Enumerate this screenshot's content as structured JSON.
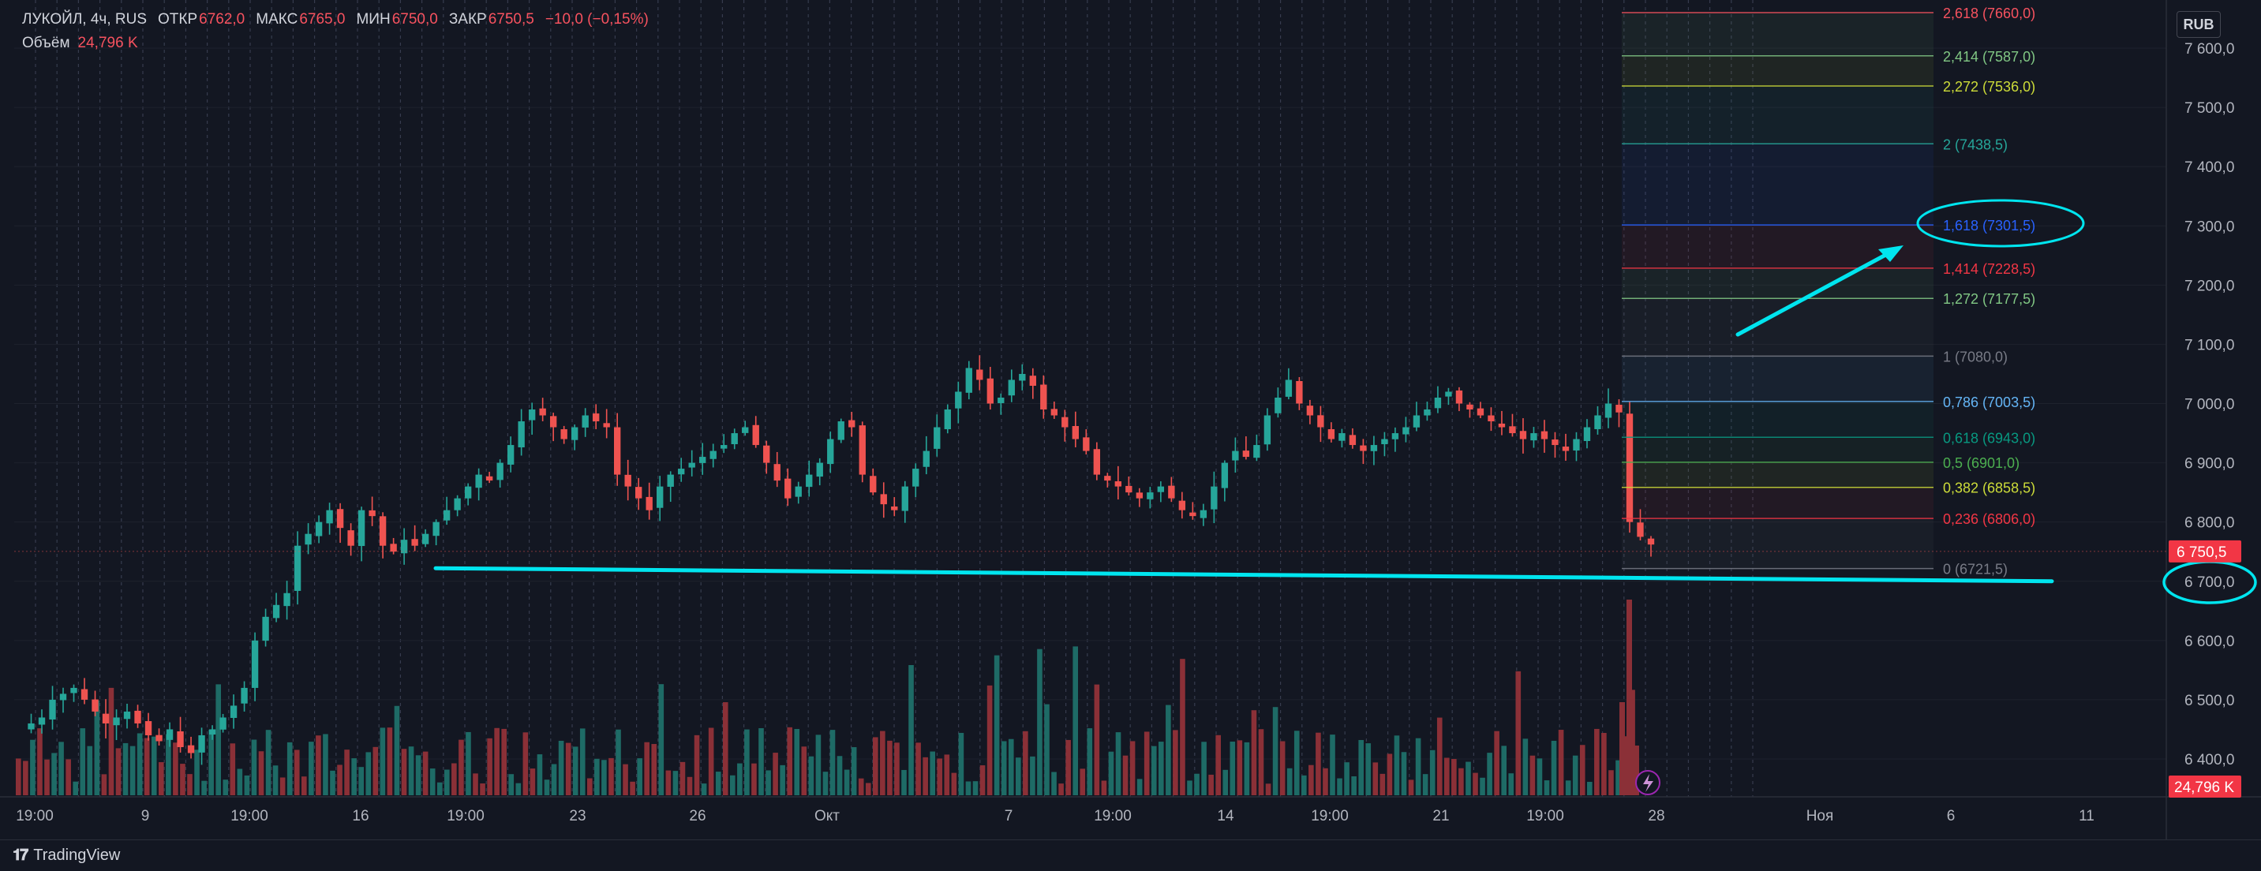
{
  "legend": {
    "title": "ЛУКОЙЛ, 4ч, RUS",
    "open_label": "ОТКР",
    "open": "6762,0",
    "high_label": "МАКС",
    "high": "6765,0",
    "low_label": "МИН",
    "low": "6750,0",
    "close_label": "ЗАКР",
    "close": "6750,5",
    "change": "−10,0 (−0,15%)",
    "volume_label": "Объём",
    "volume": "24,796 K"
  },
  "currency_button": "RUB",
  "footer": {
    "logo": "𝟏𝟕",
    "brand": "TradingView"
  },
  "colors": {
    "background": "#131722",
    "bull": "#26a69a",
    "bear": "#ef5350",
    "volume_bull": "#1e6b66",
    "volume_bear": "#8b3037",
    "annotation": "#00e5ef",
    "grid_dash": "#3a4053"
  },
  "chart_data": {
    "type": "candlestick",
    "symbol": "ЛУКОЙЛ",
    "interval": "4ч",
    "exchange": "RUS",
    "currency": "RUB",
    "ylim": [
      6400,
      7600
    ],
    "y_ticks": [
      "6 400,0",
      "6 500,0",
      "6 600,0",
      "6 700,0",
      "6 800,0",
      "6 900,0",
      "7 000,0",
      "7 100,0",
      "7 200,0",
      "7 300,0",
      "7 400,0",
      "7 500,0",
      "7 600,0"
    ],
    "x_ticks": [
      "19:00",
      "9",
      "19:00",
      "16",
      "19:00",
      "23",
      "26",
      "Окт",
      "7",
      "19:00",
      "14",
      "19:00",
      "21",
      "19:00",
      "28",
      "Ноя",
      "6",
      "11"
    ],
    "last_price": "6 750,5",
    "last_volume": "24,796 K",
    "close_path": [
      6450,
      6460,
      6470,
      6500,
      6510,
      6520,
      6500,
      6480,
      6460,
      6470,
      6480,
      6460,
      6440,
      6430,
      6450,
      6420,
      6410,
      6440,
      6450,
      6470,
      6490,
      6520,
      6600,
      6640,
      6660,
      6680,
      6760,
      6780,
      6800,
      6820,
      6790,
      6760,
      6820,
      6810,
      6760,
      6750,
      6770,
      6760,
      6780,
      6800,
      6820,
      6840,
      6860,
      6880,
      6870,
      6900,
      6930,
      6970,
      6990,
      6980,
      6960,
      6940,
      6960,
      6980,
      6970,
      6960,
      6880,
      6860,
      6840,
      6820,
      6860,
      6880,
      6890,
      6900,
      6910,
      6920,
      6930,
      6950,
      6960,
      6930,
      6900,
      6870,
      6840,
      6860,
      6880,
      6900,
      6940,
      6970,
      6960,
      6880,
      6850,
      6830,
      6820,
      6860,
      6890,
      6920,
      6960,
      6990,
      7020,
      7060,
      7040,
      7000,
      7010,
      7040,
      7050,
      7030,
      6990,
      6980,
      6960,
      6940,
      6920,
      6880,
      6870,
      6860,
      6850,
      6840,
      6850,
      6860,
      6840,
      6820,
      6810,
      6820,
      6860,
      6900,
      6920,
      6910,
      6930,
      6980,
      7010,
      7040,
      7000,
      6980,
      6960,
      6940,
      6950,
      6930,
      6920,
      6930,
      6940,
      6950,
      6960,
      6980,
      6990,
      7010,
      7020,
      7000,
      6990,
      6980,
      6970,
      6960,
      6950,
      6940,
      6950,
      6940,
      6930,
      6920,
      6940,
      6960,
      6980,
      7000,
      6985,
      6800,
      6775,
      6762
    ],
    "volume_scale": [
      0,
      70
    ],
    "fibonacci": [
      {
        "level": "2,618",
        "price": 7660.0,
        "label": "2,618 (7660,0)",
        "color": "#f7525f"
      },
      {
        "level": "2,414",
        "price": 7587.0,
        "label": "2,414 (7587,0)",
        "color": "#81c784"
      },
      {
        "level": "2,272",
        "price": 7536.0,
        "label": "2,272 (7536,0)",
        "color": "#cddc39"
      },
      {
        "level": "2",
        "price": 7438.5,
        "label": "2 (7438,5)",
        "color": "#26a69a"
      },
      {
        "level": "1,618",
        "price": 7301.5,
        "label": "1,618 (7301,5)",
        "color": "#2962ff"
      },
      {
        "level": "1,414",
        "price": 7228.5,
        "label": "1,414 (7228,5)",
        "color": "#f23645"
      },
      {
        "level": "1,272",
        "price": 7177.5,
        "label": "1,272 (7177,5)",
        "color": "#81c784"
      },
      {
        "level": "1",
        "price": 7080.0,
        "label": "1 (7080,0)",
        "color": "#787b86"
      },
      {
        "level": "0,786",
        "price": 7003.5,
        "label": "0,786 (7003,5)",
        "color": "#64b5f6"
      },
      {
        "level": "0,618",
        "price": 6943.0,
        "label": "0,618 (6943,0)",
        "color": "#089981"
      },
      {
        "level": "0,5",
        "price": 6901.0,
        "label": "0,5 (6901,0)",
        "color": "#4caf50"
      },
      {
        "level": "0,382",
        "price": 6858.5,
        "label": "0,382 (6858,5)",
        "color": "#cddc39"
      },
      {
        "level": "0,236",
        "price": 6806.0,
        "label": "0,236 (6806,0)",
        "color": "#f23645"
      },
      {
        "level": "0",
        "price": 6721.5,
        "label": "0 (6721,5)",
        "color": "#787b86"
      }
    ],
    "annotations": {
      "support_line": {
        "price_start": 6722,
        "price_end": 6700
      },
      "arrow_target_level": "1,618",
      "circled_axis_price": "6 700,0"
    }
  }
}
